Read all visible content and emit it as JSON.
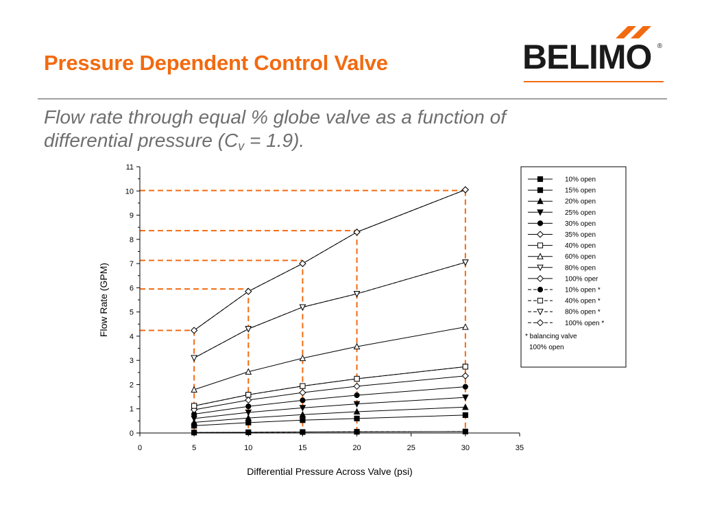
{
  "slide": {
    "title": "Pressure Dependent Control Valve",
    "subtitle_line1": "Flow rate through equal % globe valve as a function of",
    "subtitle_line2_before": "differential pressure (C",
    "subtitle_sub": "v",
    "subtitle_line2_after": " = 1.9)."
  },
  "logo": {
    "text": "BELIMO",
    "mark": "®",
    "accent_color": "#f26a10"
  },
  "colors": {
    "title": "#f26a10",
    "guide_lines": "#f26a10",
    "series": "#000000"
  },
  "chart_data": {
    "type": "line",
    "xlabel": "Differential Pressure Across Valve (psi)",
    "ylabel": "Flow Rate (GPM)",
    "xlim": [
      0,
      35
    ],
    "ylim": [
      0,
      11
    ],
    "xticks": [
      0,
      5,
      10,
      15,
      20,
      25,
      30,
      35
    ],
    "yticks": [
      0,
      1,
      2,
      3,
      4,
      5,
      6,
      7,
      8,
      9,
      10,
      11
    ],
    "grid": false,
    "legend_position": "right",
    "x": [
      5,
      10,
      15,
      20,
      30
    ],
    "series": [
      {
        "name": "10% open",
        "marker": "square-filled",
        "dash": false,
        "values": [
          0.02,
          0.03,
          0.04,
          0.05,
          0.06
        ]
      },
      {
        "name": "15% open",
        "marker": "square-filled",
        "dash": false,
        "values": [
          0.3,
          0.43,
          0.53,
          0.6,
          0.74
        ]
      },
      {
        "name": "20% open",
        "marker": "triangle-up-filled",
        "dash": false,
        "values": [
          0.44,
          0.62,
          0.76,
          0.88,
          1.07
        ]
      },
      {
        "name": "25% open",
        "marker": "triangle-down-filled",
        "dash": false,
        "values": [
          0.6,
          0.85,
          1.04,
          1.2,
          1.47
        ]
      },
      {
        "name": "30% open",
        "marker": "circle-filled",
        "dash": false,
        "values": [
          0.78,
          1.1,
          1.35,
          1.56,
          1.91
        ]
      },
      {
        "name": "35% open",
        "marker": "diamond-open",
        "dash": false,
        "values": [
          0.96,
          1.36,
          1.67,
          1.93,
          2.36
        ]
      },
      {
        "name": "40% open",
        "marker": "square-open",
        "dash": false,
        "values": [
          1.12,
          1.58,
          1.94,
          2.24,
          2.74
        ]
      },
      {
        "name": "60% open",
        "marker": "triangle-up-open",
        "dash": false,
        "values": [
          1.79,
          2.53,
          3.09,
          3.57,
          4.38
        ]
      },
      {
        "name": "80% open",
        "marker": "triangle-down-open",
        "dash": false,
        "values": [
          3.1,
          4.3,
          5.2,
          5.75,
          7.05
        ]
      },
      {
        "name": "100% oper",
        "marker": "diamond-open",
        "dash": false,
        "values": [
          4.24,
          5.85,
          7.0,
          8.3,
          10.05
        ]
      },
      {
        "name": "10% open *",
        "marker": "circle-filled",
        "dash": true,
        "values": [
          0.02,
          0.03,
          0.04,
          0.05,
          0.06
        ]
      },
      {
        "name": "40% open *",
        "marker": "square-open",
        "dash": true,
        "values": [
          1.12,
          1.58,
          1.94,
          2.24,
          2.74
        ]
      },
      {
        "name": "80% open *",
        "marker": "triangle-down-open",
        "dash": true,
        "values": [
          3.1,
          4.3,
          5.2,
          5.75,
          7.05
        ]
      },
      {
        "name": "100% open *",
        "marker": "diamond-open",
        "dash": true,
        "values": [
          4.24,
          5.85,
          7.0,
          8.3,
          10.05
        ]
      }
    ],
    "legend_note_line1": "* balancing valve",
    "legend_note_line2": "100% open",
    "guide_lines": [
      {
        "x": 5,
        "y": 4.24
      },
      {
        "x": 10,
        "y": 5.95
      },
      {
        "x": 15,
        "y": 7.13
      },
      {
        "x": 20,
        "y": 8.36
      },
      {
        "x": 30,
        "y": 10.02
      }
    ]
  }
}
